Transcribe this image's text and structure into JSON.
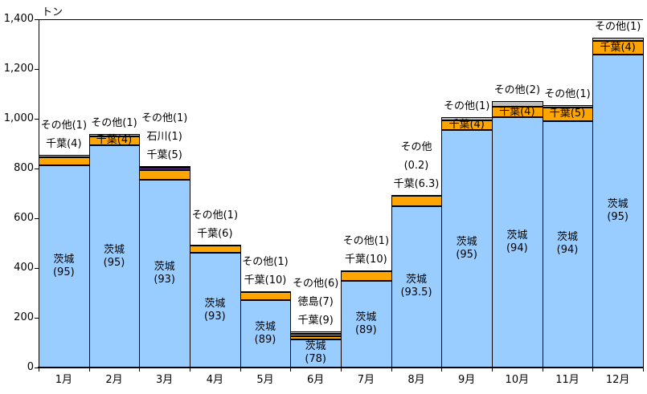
{
  "chart_data": {
    "type": "bar",
    "stacked": true,
    "title": "トン",
    "ylabel": "トン",
    "xlabel": "",
    "grid": false,
    "legend": "none (labels drawn on/above bars)",
    "categories": [
      "1月",
      "2月",
      "3月",
      "4月",
      "5月",
      "6月",
      "7月",
      "8月",
      "9月",
      "10月",
      "11月",
      "12月"
    ],
    "y_axis": {
      "min": 0,
      "max": 1400,
      "step": 200,
      "tick_labels": [
        "0",
        "200",
        "400",
        "600",
        "800",
        "1,000",
        "1,200",
        "1,400"
      ]
    },
    "totals_tons": [
      855,
      940,
      810,
      495,
      305,
      145,
      390,
      695,
      1005,
      1070,
      1055,
      1325
    ],
    "series": [
      {
        "name": "茨城",
        "color": "#99CCFF",
        "share_pct": [
          95,
          95,
          93,
          93,
          89,
          78,
          89,
          93.5,
          95,
          94,
          94,
          95
        ]
      },
      {
        "name": "千葉",
        "color": "#FFA500",
        "share_pct": [
          4,
          4,
          5,
          6,
          10,
          9,
          10,
          6.3,
          4,
          4,
          5,
          4
        ]
      },
      {
        "name": "石川",
        "color": "#7030A0",
        "share_pct": [
          0,
          0,
          1,
          0,
          0,
          0,
          0,
          0,
          0,
          0,
          0,
          0
        ]
      },
      {
        "name": "徳島",
        "color": "#FF80C0",
        "share_pct": [
          0,
          0,
          0,
          0,
          0,
          7,
          0,
          0,
          0,
          0,
          0,
          0
        ]
      },
      {
        "name": "その他",
        "color": "#BFBFBF",
        "share_pct": [
          1,
          1,
          1,
          1,
          1,
          6,
          1,
          0.2,
          1,
          2,
          1,
          1
        ]
      }
    ],
    "bar_labels": {
      "above": [
        [
          "その他(1)",
          "千葉(4)"
        ],
        [
          "その他(1)"
        ],
        [
          "その他(1)",
          "石川(1)",
          "千葉(5)"
        ],
        [
          "その他(1)",
          "千葉(6)"
        ],
        [
          "その他(1)",
          "千葉(10)"
        ],
        [
          "その他(6)",
          "徳島(7)",
          "千葉(9)"
        ],
        [
          "その他(1)",
          "千葉(10)"
        ],
        [
          "その他",
          "(0.2)",
          "千葉(6.3)"
        ],
        [
          "その他(1)"
        ],
        [
          "その他(2)"
        ],
        [
          "その他(1)"
        ],
        [
          "その他(1)"
        ]
      ],
      "inside_orange": [
        null,
        "千葉(4)",
        null,
        null,
        null,
        null,
        null,
        null,
        "千葉(4)",
        "千葉(4)",
        "千葉(5)",
        "千葉(4)"
      ],
      "inside_blue": [
        [
          "茨城",
          "(95)"
        ],
        [
          "茨城",
          "(95)"
        ],
        [
          "茨城",
          "(93)"
        ],
        [
          "茨城",
          "(93)"
        ],
        [
          "茨城",
          "(89)"
        ],
        [
          "茨城",
          "(78)"
        ],
        [
          "茨城",
          "(89)"
        ],
        [
          "茨城",
          "(93.5)"
        ],
        [
          "茨城",
          "(95)"
        ],
        [
          "茨城",
          "(94)"
        ],
        [
          "茨城",
          "(94)"
        ],
        [
          "茨城",
          "(95)"
        ]
      ]
    }
  },
  "layout_colors": {
    "axis": "#000000",
    "background": "#FFFFFF",
    "text": "#000000"
  }
}
